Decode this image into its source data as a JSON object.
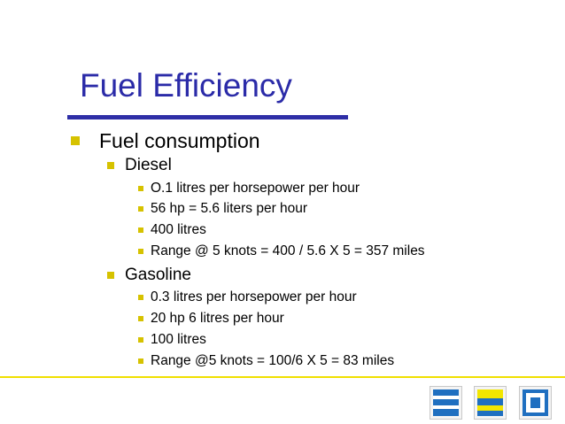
{
  "slide": {
    "title": "Fuel Efficiency",
    "accent_color": "#2e2ea6",
    "bullet_color": "#d6c200",
    "bottom_rule_color": "#f0e000",
    "level1": {
      "text": "Fuel consumption"
    },
    "diesel": {
      "label": "Diesel",
      "items": [
        "O.1 litres per horsepower per hour",
        "56 hp = 5.6 liters per hour",
        "400 litres",
        "Range @ 5 knots = 400 / 5.6 X 5 = 357 miles"
      ]
    },
    "gasoline": {
      "label": "Gasoline",
      "items": [
        "0.3 litres per horsepower per hour",
        "20 hp 6 litres per hour",
        "100 litres",
        "Range @5 knots = 100/6 X 5 = 83 miles"
      ]
    },
    "flags": [
      {
        "icon": "signal-flag-blue-white-stripes-icon"
      },
      {
        "icon": "signal-flag-yellow-blue-stripes-icon"
      },
      {
        "icon": "signal-flag-blue-white-square-icon"
      }
    ]
  }
}
